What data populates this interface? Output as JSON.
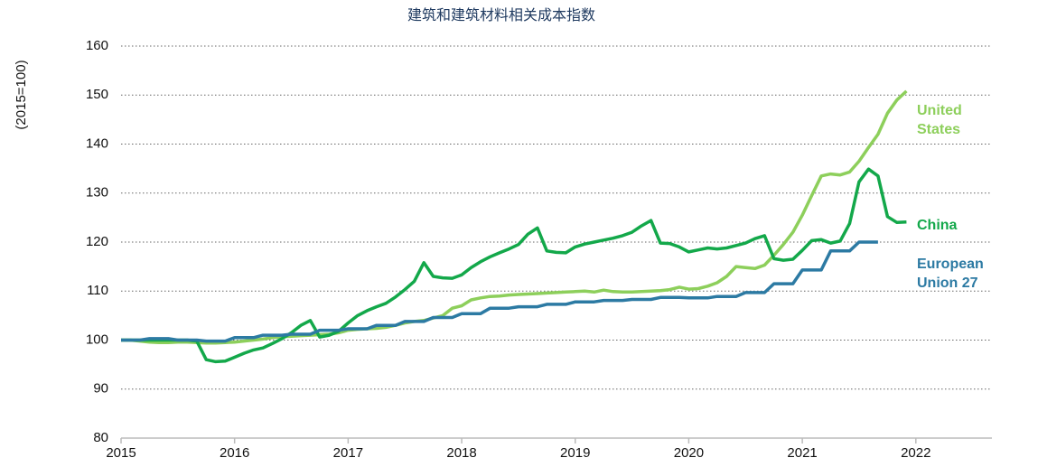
{
  "chart_data": {
    "type": "line",
    "title": "建筑和建筑材料相关成本指数",
    "y_label": "(2015=100)",
    "x": [
      2015,
      2015.083,
      2015.167,
      2015.25,
      2015.333,
      2015.417,
      2015.5,
      2015.583,
      2015.667,
      2015.75,
      2015.833,
      2015.917,
      2016,
      2016.083,
      2016.167,
      2016.25,
      2016.333,
      2016.417,
      2016.5,
      2016.583,
      2016.667,
      2016.75,
      2016.833,
      2016.917,
      2017,
      2017.083,
      2017.167,
      2017.25,
      2017.333,
      2017.417,
      2017.5,
      2017.583,
      2017.667,
      2017.75,
      2017.833,
      2017.917,
      2018,
      2018.083,
      2018.167,
      2018.25,
      2018.333,
      2018.417,
      2018.5,
      2018.583,
      2018.667,
      2018.75,
      2018.833,
      2018.917,
      2019,
      2019.083,
      2019.167,
      2019.25,
      2019.333,
      2019.417,
      2019.5,
      2019.583,
      2019.667,
      2019.75,
      2019.833,
      2019.917,
      2020,
      2020.083,
      2020.167,
      2020.25,
      2020.333,
      2020.417,
      2020.5,
      2020.583,
      2020.667,
      2020.75,
      2020.833,
      2020.917,
      2021,
      2021.083,
      2021.167,
      2021.25,
      2021.333,
      2021.417,
      2021.5,
      2021.583,
      2021.667,
      2021.75,
      2021.833,
      2021.917
    ],
    "series": [
      {
        "name": "United States",
        "color": "#8dcf5b",
        "values": [
          100,
          100,
          99.8,
          99.6,
          99.5,
          99.5,
          99.6,
          99.6,
          99.5,
          99.4,
          99.4,
          99.5,
          99.6,
          99.8,
          100,
          100.2,
          100.5,
          100.7,
          100.8,
          100.9,
          101,
          101.1,
          101.2,
          101.5,
          102,
          102.2,
          102.3,
          102.4,
          102.6,
          103,
          103.5,
          103.8,
          104,
          104.5,
          105,
          106.5,
          107,
          108.2,
          108.6,
          108.9,
          109,
          109.2,
          109.3,
          109.4,
          109.5,
          109.6,
          109.7,
          109.8,
          109.9,
          110,
          109.8,
          110.2,
          109.9,
          109.8,
          109.8,
          109.9,
          110,
          110.1,
          110.3,
          110.8,
          110.4,
          110.5,
          111,
          111.7,
          113,
          115,
          114.8,
          114.6,
          115.3,
          117.3,
          119.5,
          122,
          125.5,
          129.5,
          133.5,
          133.9,
          133.7,
          134.3,
          136.5,
          139.3,
          142,
          146.3,
          149,
          150.8
        ]
      },
      {
        "name": "China",
        "color": "#13a84a",
        "values": [
          100,
          100,
          100,
          100,
          100,
          100,
          100,
          100,
          99.8,
          96,
          95.6,
          95.7,
          96.5,
          97.3,
          98,
          98.4,
          99.3,
          100.3,
          101.5,
          103,
          104,
          100.6,
          101,
          101.8,
          103.5,
          105,
          106,
          106.8,
          107.5,
          108.8,
          110.3,
          112,
          115.8,
          113,
          112.7,
          112.6,
          113.3,
          114.8,
          116,
          117,
          117.8,
          118.6,
          119.5,
          121.6,
          122.9,
          118.2,
          117.9,
          117.8,
          119,
          119.6,
          120,
          120.4,
          120.8,
          121.3,
          122,
          123.3,
          124.4,
          119.8,
          119.7,
          119,
          118,
          118.4,
          118.8,
          118.6,
          118.8,
          119.3,
          119.8,
          120.7,
          121.3,
          116.6,
          116.3,
          116.5,
          118.3,
          120.3,
          120.5,
          119.8,
          120.2,
          123.8,
          132.3,
          134.9,
          133.5,
          125.2,
          124,
          124.1
        ]
      },
      {
        "name": "European Union 27",
        "color": "#2c7aa3",
        "values": [
          100,
          100,
          100,
          100.3,
          100.3,
          100.3,
          100,
          100,
          100,
          99.8,
          99.8,
          99.8,
          100.5,
          100.5,
          100.5,
          101,
          101,
          101,
          101.2,
          101.2,
          101.2,
          102,
          102,
          102,
          102.3,
          102.3,
          102.3,
          103,
          103,
          103,
          103.8,
          103.8,
          103.8,
          104.6,
          104.6,
          104.6,
          105.4,
          105.4,
          105.4,
          106.5,
          106.5,
          106.5,
          106.8,
          106.8,
          106.8,
          107.3,
          107.3,
          107.3,
          107.8,
          107.8,
          107.8,
          108.1,
          108.1,
          108.1,
          108.3,
          108.3,
          108.3,
          108.7,
          108.7,
          108.7,
          108.6,
          108.6,
          108.6,
          108.9,
          108.9,
          108.9,
          109.7,
          109.7,
          109.7,
          111.5,
          111.5,
          111.5,
          114.3,
          114.3,
          114.3,
          118.2,
          118.2,
          118.2,
          120,
          120,
          120,
          null,
          null,
          null
        ]
      }
    ],
    "xlim": [
      2015,
      2022.67
    ],
    "xticks": [
      2015,
      2016,
      2017,
      2018,
      2019,
      2020,
      2021,
      2022
    ],
    "ylim": [
      80,
      160
    ],
    "yticks": [
      80,
      90,
      100,
      110,
      120,
      130,
      140,
      150,
      160
    ],
    "grid": true
  }
}
